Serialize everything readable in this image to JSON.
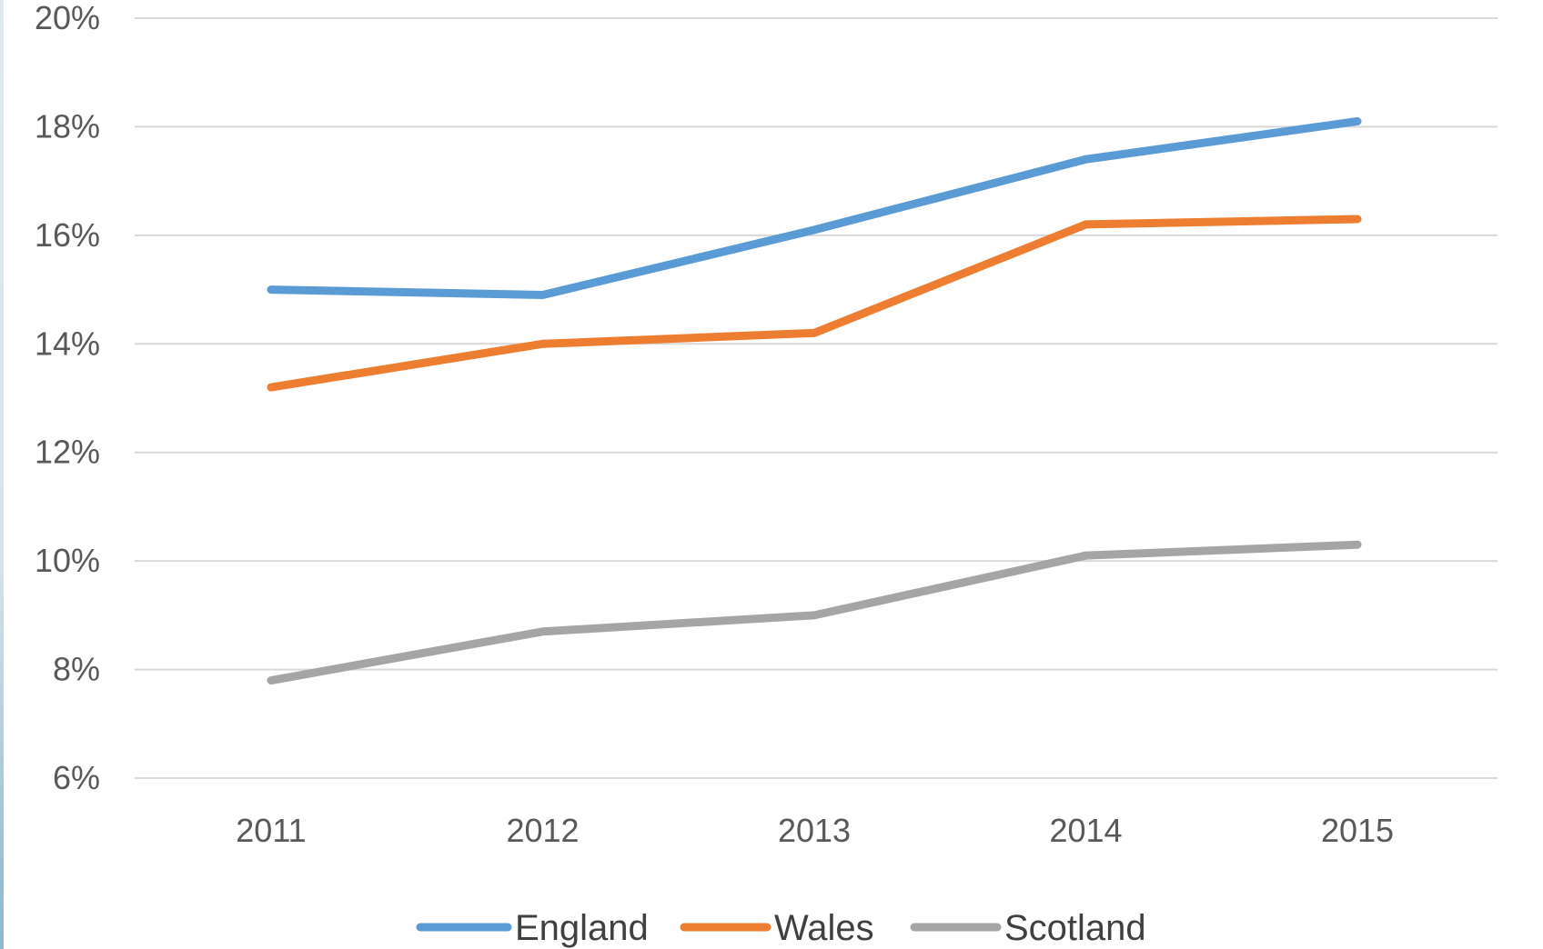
{
  "chart_data": {
    "type": "line",
    "title": "",
    "xlabel": "",
    "ylabel": "",
    "categories": [
      "2011",
      "2012",
      "2013",
      "2014",
      "2015"
    ],
    "ylim": [
      6,
      20
    ],
    "yticks": [
      6,
      8,
      10,
      12,
      14,
      16,
      18,
      20
    ],
    "ytick_labels": [
      "6%",
      "8%",
      "10%",
      "12%",
      "14%",
      "16%",
      "18%",
      "20%"
    ],
    "grid": true,
    "legend_position": "bottom",
    "series": [
      {
        "name": "England",
        "color": "#5b9bd5",
        "values": [
          15.0,
          14.9,
          16.1,
          17.4,
          18.1
        ]
      },
      {
        "name": "Wales",
        "color": "#ed7d31",
        "values": [
          13.2,
          14.0,
          14.2,
          16.2,
          16.3
        ]
      },
      {
        "name": "Scotland",
        "color": "#a5a5a5",
        "values": [
          7.8,
          8.7,
          9.0,
          10.1,
          10.3
        ]
      }
    ]
  }
}
